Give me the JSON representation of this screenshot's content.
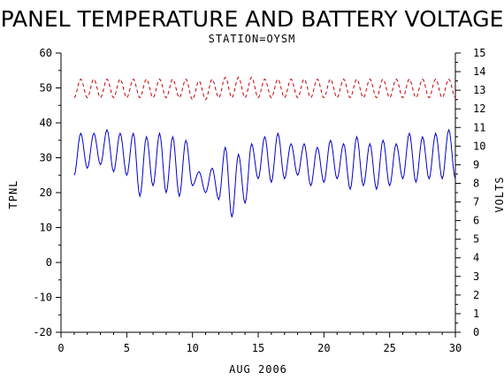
{
  "chart_data": {
    "type": "line",
    "title": "PANEL TEMPERATURE AND BATTERY VOLTAGE",
    "subtitle": "STATION=OYSM",
    "xlabel": "AUG 2006",
    "ylabel_left": "TPNL",
    "ylabel_right": "VOLTS",
    "xlim": [
      0,
      30
    ],
    "ylim_left": [
      -20,
      60
    ],
    "ylim_right": [
      0,
      15
    ],
    "x_ticks": [
      0,
      5,
      10,
      15,
      20,
      25,
      30
    ],
    "y_left_ticks": [
      -20,
      -10,
      0,
      10,
      20,
      30,
      40,
      50,
      60
    ],
    "y_right_ticks": [
      0,
      1,
      2,
      3,
      4,
      5,
      6,
      7,
      8,
      9,
      10,
      11,
      12,
      13,
      14,
      15
    ],
    "series": [
      {
        "name": "TPNL",
        "axis": "left",
        "color": "#0000cc",
        "dash": "solid",
        "days": [
          {
            "day": 1,
            "min": 25,
            "max": 37
          },
          {
            "day": 2,
            "min": 27,
            "max": 37
          },
          {
            "day": 3,
            "min": 28,
            "max": 38
          },
          {
            "day": 4,
            "min": 26,
            "max": 37
          },
          {
            "day": 5,
            "min": 25,
            "max": 37
          },
          {
            "day": 6,
            "min": 19,
            "max": 36
          },
          {
            "day": 7,
            "min": 22,
            "max": 37
          },
          {
            "day": 8,
            "min": 20,
            "max": 36
          },
          {
            "day": 9,
            "min": 19,
            "max": 35
          },
          {
            "day": 10,
            "min": 22,
            "max": 26
          },
          {
            "day": 11,
            "min": 20,
            "max": 27
          },
          {
            "day": 12,
            "min": 18,
            "max": 33
          },
          {
            "day": 13,
            "min": 13,
            "max": 31
          },
          {
            "day": 14,
            "min": 17,
            "max": 34
          },
          {
            "day": 15,
            "min": 24,
            "max": 36
          },
          {
            "day": 16,
            "min": 23,
            "max": 37
          },
          {
            "day": 17,
            "min": 24,
            "max": 34
          },
          {
            "day": 18,
            "min": 25,
            "max": 34
          },
          {
            "day": 19,
            "min": 22,
            "max": 33
          },
          {
            "day": 20,
            "min": 23,
            "max": 35
          },
          {
            "day": 21,
            "min": 24,
            "max": 34
          },
          {
            "day": 22,
            "min": 21,
            "max": 36
          },
          {
            "day": 23,
            "min": 22,
            "max": 34
          },
          {
            "day": 24,
            "min": 21,
            "max": 35
          },
          {
            "day": 25,
            "min": 22,
            "max": 34
          },
          {
            "day": 26,
            "min": 24,
            "max": 37
          },
          {
            "day": 27,
            "min": 23,
            "max": 36
          },
          {
            "day": 28,
            "min": 24,
            "max": 37
          },
          {
            "day": 29,
            "min": 24,
            "max": 38
          }
        ]
      },
      {
        "name": "VOLTS",
        "axis": "right",
        "color": "#cc0000",
        "dash": "dashed",
        "days": [
          {
            "day": 1,
            "min": 12.6,
            "max": 13.6
          },
          {
            "day": 2,
            "min": 12.6,
            "max": 13.6
          },
          {
            "day": 3,
            "min": 12.6,
            "max": 13.6
          },
          {
            "day": 4,
            "min": 12.6,
            "max": 13.6
          },
          {
            "day": 5,
            "min": 12.6,
            "max": 13.6
          },
          {
            "day": 6,
            "min": 12.6,
            "max": 13.6
          },
          {
            "day": 7,
            "min": 12.6,
            "max": 13.6
          },
          {
            "day": 8,
            "min": 12.6,
            "max": 13.6
          },
          {
            "day": 9,
            "min": 12.6,
            "max": 13.6
          },
          {
            "day": 10,
            "min": 12.5,
            "max": 13.5
          },
          {
            "day": 11,
            "min": 12.5,
            "max": 13.6
          },
          {
            "day": 12,
            "min": 12.6,
            "max": 13.7
          },
          {
            "day": 13,
            "min": 12.6,
            "max": 13.7
          },
          {
            "day": 14,
            "min": 12.6,
            "max": 13.7
          },
          {
            "day": 15,
            "min": 12.6,
            "max": 13.6
          },
          {
            "day": 16,
            "min": 12.6,
            "max": 13.6
          },
          {
            "day": 17,
            "min": 12.6,
            "max": 13.6
          },
          {
            "day": 18,
            "min": 12.6,
            "max": 13.6
          },
          {
            "day": 19,
            "min": 12.6,
            "max": 13.6
          },
          {
            "day": 20,
            "min": 12.6,
            "max": 13.6
          },
          {
            "day": 21,
            "min": 12.6,
            "max": 13.6
          },
          {
            "day": 22,
            "min": 12.6,
            "max": 13.6
          },
          {
            "day": 23,
            "min": 12.6,
            "max": 13.6
          },
          {
            "day": 24,
            "min": 12.6,
            "max": 13.6
          },
          {
            "day": 25,
            "min": 12.6,
            "max": 13.6
          },
          {
            "day": 26,
            "min": 12.6,
            "max": 13.6
          },
          {
            "day": 27,
            "min": 12.6,
            "max": 13.6
          },
          {
            "day": 28,
            "min": 12.6,
            "max": 13.6
          },
          {
            "day": 29,
            "min": 12.6,
            "max": 13.6
          }
        ]
      }
    ],
    "grid": false
  }
}
